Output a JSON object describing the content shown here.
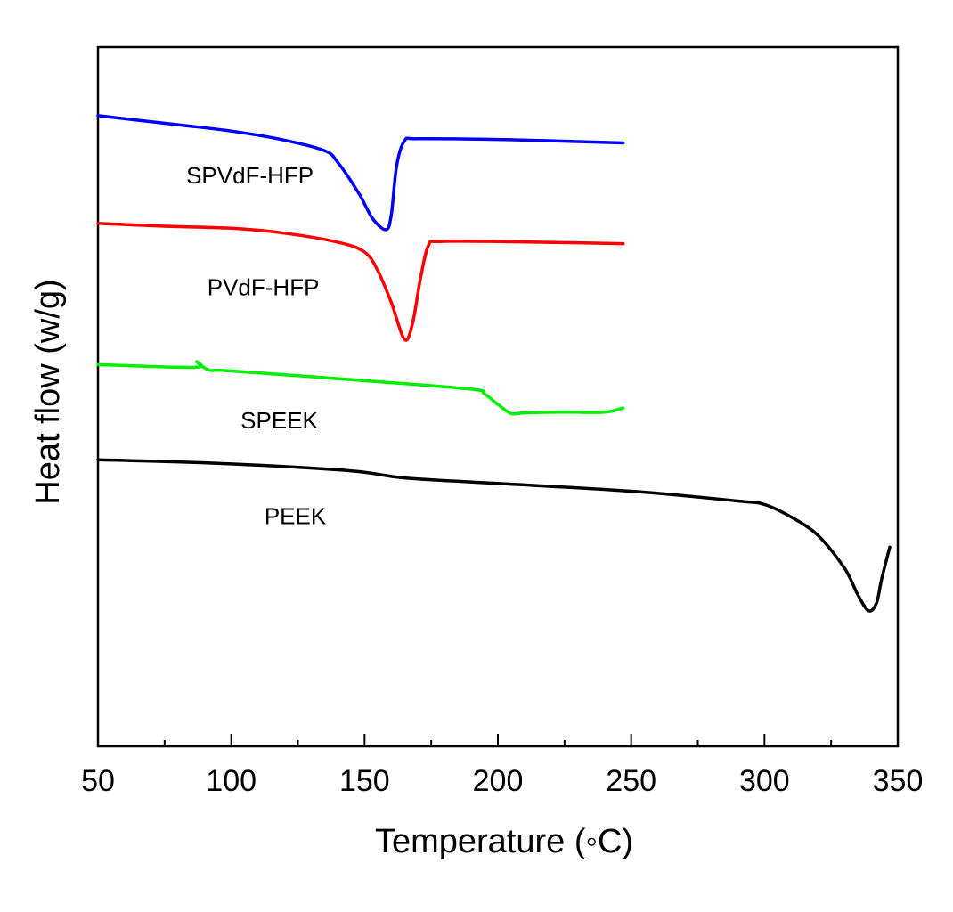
{
  "chart_data": {
    "type": "line",
    "xlabel": "Temperature (◦C)",
    "ylabel": "Heat flow (w/g)",
    "xlim": [
      50,
      350
    ],
    "ylim": [
      0,
      100
    ],
    "x_ticks": [
      50,
      100,
      150,
      200,
      250,
      300,
      350
    ],
    "y_ticks_shown": false,
    "grid": false,
    "legend": "none",
    "series": [
      {
        "name": "SPVdF-HFP",
        "color": "#0000ff",
        "points": [
          [
            50,
            90.2
          ],
          [
            80,
            88.9
          ],
          [
            100,
            88.0
          ],
          [
            120,
            86.7
          ],
          [
            135,
            85.2
          ],
          [
            140,
            83.5
          ],
          [
            148,
            79.0
          ],
          [
            153,
            75.5
          ],
          [
            158,
            73.9
          ],
          [
            160,
            76.0
          ],
          [
            162,
            83.0
          ],
          [
            165,
            86.6
          ],
          [
            170,
            86.9
          ],
          [
            200,
            86.8
          ],
          [
            230,
            86.5
          ],
          [
            247,
            86.3
          ]
        ]
      },
      {
        "name": "PVdF-HFP",
        "color": "#ff0000",
        "points": [
          [
            50,
            74.8
          ],
          [
            75,
            74.4
          ],
          [
            100,
            74.1
          ],
          [
            120,
            73.4
          ],
          [
            140,
            72.1
          ],
          [
            150,
            70.7
          ],
          [
            155,
            68.0
          ],
          [
            160,
            63.5
          ],
          [
            165,
            58.2
          ],
          [
            168,
            60.5
          ],
          [
            171,
            67.0
          ],
          [
            174,
            71.7
          ],
          [
            178,
            72.2
          ],
          [
            200,
            72.2
          ],
          [
            247,
            71.9
          ]
        ]
      },
      {
        "name": "SPEEK",
        "color": "#00ee00",
        "points": [
          [
            50,
            54.6
          ],
          [
            86,
            54.2
          ],
          [
            87,
            55.0
          ],
          [
            88,
            54.7
          ],
          [
            92,
            53.8
          ],
          [
            100,
            53.7
          ],
          [
            150,
            52.3
          ],
          [
            190,
            51.1
          ],
          [
            195,
            50.4
          ],
          [
            200,
            48.9
          ],
          [
            205,
            47.6
          ],
          [
            210,
            47.7
          ],
          [
            225,
            47.8
          ],
          [
            240,
            47.8
          ],
          [
            247,
            48.4
          ]
        ]
      },
      {
        "name": "PEEK",
        "color": "#000000",
        "points": [
          [
            50,
            41.0
          ],
          [
            100,
            40.4
          ],
          [
            145,
            39.4
          ],
          [
            165,
            38.4
          ],
          [
            200,
            37.6
          ],
          [
            250,
            36.5
          ],
          [
            290,
            35.1
          ],
          [
            300,
            34.6
          ],
          [
            310,
            32.8
          ],
          [
            320,
            30.2
          ],
          [
            330,
            25.5
          ],
          [
            335,
            21.7
          ],
          [
            339,
            19.4
          ],
          [
            342,
            20.5
          ],
          [
            344,
            24.0
          ],
          [
            347,
            28.5
          ]
        ]
      }
    ],
    "labels": [
      {
        "text": "SPVdF-HFP",
        "x": 107,
        "y": 80.5
      },
      {
        "text": "PVdF-HFP",
        "x": 112,
        "y": 64.5
      },
      {
        "text": "SPEEK",
        "x": 118,
        "y": 45.5
      },
      {
        "text": "PEEK",
        "x": 124,
        "y": 31.8
      }
    ]
  }
}
